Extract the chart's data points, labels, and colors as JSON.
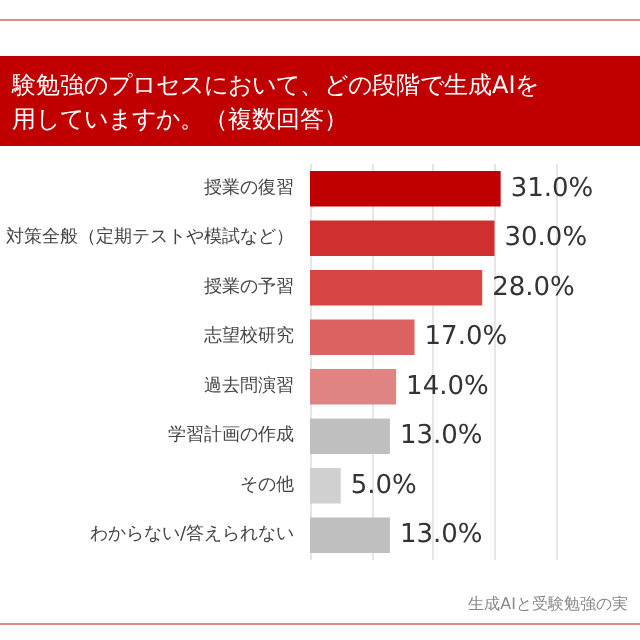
{
  "chart_data": {
    "type": "bar",
    "orientation": "horizontal",
    "title": "験勉強のプロセスにおいて、どの段階で生成AIを用していますか。（複数回答）",
    "categories": [
      "授業の復習",
      "対策全般（定期テストや模試など）",
      "授業の予習",
      "志望校研究",
      "過去問演習",
      "学習計画の作成",
      "その他",
      "わからない/答えられない"
    ],
    "values": [
      31,
      30,
      28,
      17,
      14,
      13,
      5,
      13
    ],
    "colors": [
      "#c00000",
      "#cf2f2f",
      "#d84545",
      "#dc6262",
      "#e08383",
      "#bfbfbf",
      "#d0d0d0",
      "#bfbfbf"
    ],
    "value_labels": [
      "31.0%",
      "30.0%",
      "28.0%",
      "17.0%",
      "14.0%",
      "13.0%",
      "5.0%",
      "13.0%"
    ],
    "xlim": [
      0,
      40
    ],
    "xticks": [
      {
        "value": 0,
        "label": null
      },
      {
        "value": 10,
        "label": null
      },
      {
        "value": 20,
        "label": null
      },
      {
        "value": 30,
        "label": null
      },
      {
        "value": 40,
        "label": null
      }
    ],
    "grid": "x",
    "annotations": [
      "生成AIと受験勉強の実"
    ]
  }
}
